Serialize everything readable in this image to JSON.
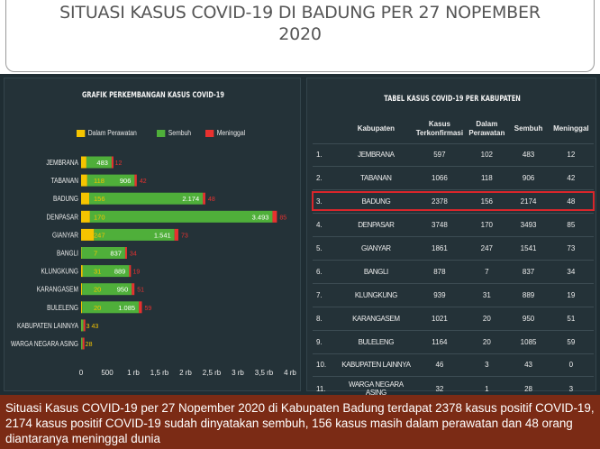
{
  "headline": {
    "line1": "SITUASI KASUS COVID-19 DI BADUNG PER 27 NOPEMBER",
    "line2": "2020"
  },
  "chart_data": [
    {
      "type": "bar",
      "stacked": true,
      "orientation": "horizontal",
      "title": "GRAFIK PERKEMBANGAN KASUS COVID-19",
      "legend_position": "top",
      "categories": [
        "JEMBRANA",
        "TABANAN",
        "BADUNG",
        "DENPASAR",
        "GIANYAR",
        "BANGLI",
        "KLUNGKUNG",
        "KARANGASEM",
        "BULELENG",
        "KABUPATEN LAINNYA",
        "WARGA NEGARA ASING"
      ],
      "series": [
        {
          "name": "Dalam Perawatan",
          "color": "#f5c400",
          "values": [
            102,
            118,
            156,
            170,
            247,
            7,
            31,
            20,
            20,
            3,
            1
          ]
        },
        {
          "name": "Sembuh",
          "color": "#4faf3a",
          "values": [
            483,
            906,
            2174,
            3493,
            1541,
            837,
            889,
            950,
            1085,
            43,
            28
          ]
        },
        {
          "name": "Meninggal",
          "color": "#e8312f",
          "values": [
            12,
            42,
            48,
            85,
            73,
            34,
            19,
            51,
            59,
            0,
            3
          ]
        }
      ],
      "data_labels": {
        "perawatan": [
          "",
          "118",
          "156",
          "170",
          "247",
          "7",
          "31",
          "20",
          "20",
          "",
          ""
        ],
        "sembuh": [
          "483",
          "906",
          "2.174",
          "3.493",
          "1.541",
          "837",
          "889",
          "950",
          "1.085",
          "",
          ""
        ],
        "meninggal": [
          "12",
          "42",
          "48",
          "85",
          "73",
          "34",
          "19",
          "51",
          "59",
          "",
          ""
        ],
        "small": [
          "",
          "",
          "",
          "",
          "",
          "",
          "",
          "",
          "",
          "3 43",
          "28"
        ]
      },
      "xlim": [
        0,
        4000
      ],
      "xticks": [
        "0",
        "500",
        "1 rb",
        "1,5 rb",
        "2 rb",
        "2,5 rb",
        "3 rb",
        "3,5 rb",
        "4 rb"
      ],
      "xtick_values": [
        0,
        500,
        1000,
        1500,
        2000,
        2500,
        3000,
        3500,
        4000
      ],
      "grid": false
    },
    {
      "type": "table",
      "title": "TABEL KASUS COVID-19 PER KABUPATEN",
      "columns": [
        "",
        "Kabupaten",
        "Kasus Terkonfirmasi",
        "Dalam Perawatan",
        "Sembuh",
        "Meninggal"
      ],
      "rows": [
        [
          "1.",
          "JEMBRANA",
          "597",
          "102",
          "483",
          "12"
        ],
        [
          "2.",
          "TABANAN",
          "1066",
          "118",
          "906",
          "42"
        ],
        [
          "3.",
          "BADUNG",
          "2378",
          "156",
          "2174",
          "48"
        ],
        [
          "4.",
          "DENPASAR",
          "3748",
          "170",
          "3493",
          "85"
        ],
        [
          "5.",
          "GIANYAR",
          "1861",
          "247",
          "1541",
          "73"
        ],
        [
          "6.",
          "BANGLI",
          "878",
          "7",
          "837",
          "34"
        ],
        [
          "7.",
          "KLUNGKUNG",
          "939",
          "31",
          "889",
          "19"
        ],
        [
          "8.",
          "KARANGASEM",
          "1021",
          "20",
          "950",
          "51"
        ],
        [
          "9.",
          "BULELENG",
          "1164",
          "20",
          "1085",
          "59"
        ],
        [
          "10.",
          "KABUPATEN LAINNYA",
          "46",
          "3",
          "43",
          "0"
        ],
        [
          "11.",
          "WARGA NEGARA ASING",
          "32",
          "1",
          "28",
          "3"
        ]
      ],
      "highlighted_row": 3,
      "highlight_color": "#d9262b"
    }
  ],
  "caption": {
    "text": "Situasi Kasus COVID-19 per 27 Nopember 2020 di Kabupaten Badung terdapat 2378 kasus positif COVID-19, 2174 kasus positif COVID-19 sudah dinyatakan sembuh, 156 kasus masih dalam perawatan dan 48 orang diantaranya meninggal dunia"
  }
}
